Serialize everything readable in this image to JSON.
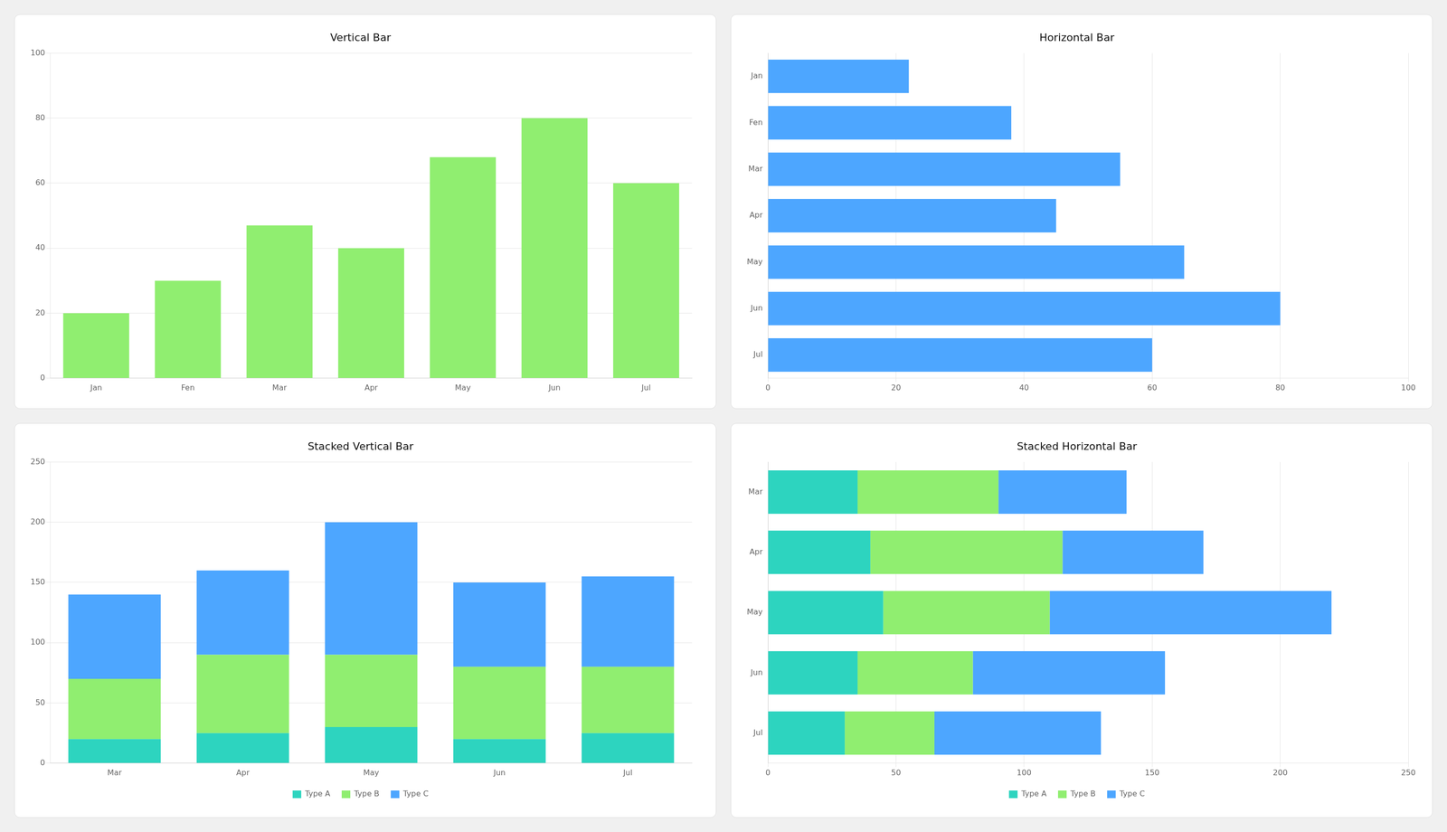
{
  "chart_data": [
    {
      "type": "bar",
      "title": "Vertical Bar",
      "categories": [
        "Jan",
        "Fen",
        "Mar",
        "Apr",
        "May",
        "Jun",
        "Jul"
      ],
      "values": [
        20,
        30,
        47,
        40,
        68,
        80,
        60
      ],
      "color": "#90ee70",
      "ylim": [
        0,
        100
      ],
      "yticks": [
        0,
        20,
        40,
        60,
        80,
        100
      ],
      "grid": true
    },
    {
      "type": "bar",
      "orientation": "horizontal",
      "title": "Horizontal Bar",
      "categories": [
        "Jan",
        "Fen",
        "Mar",
        "Apr",
        "May",
        "Jun",
        "Jul"
      ],
      "values": [
        22,
        38,
        55,
        45,
        65,
        80,
        60
      ],
      "color": "#4da6ff",
      "xlim": [
        0,
        100
      ],
      "xticks": [
        0,
        20,
        40,
        60,
        80,
        100
      ],
      "grid": true
    },
    {
      "type": "bar",
      "stacked": true,
      "title": "Stacked Vertical Bar",
      "categories": [
        "Mar",
        "Apr",
        "May",
        "Jun",
        "Jul"
      ],
      "series": [
        {
          "name": "Type A",
          "color": "#2dd4bf",
          "values": [
            20,
            25,
            30,
            20,
            25
          ]
        },
        {
          "name": "Type B",
          "color": "#90ee70",
          "values": [
            50,
            65,
            60,
            60,
            55
          ]
        },
        {
          "name": "Type C",
          "color": "#4da6ff",
          "values": [
            70,
            70,
            110,
            70,
            75
          ]
        }
      ],
      "ylim": [
        0,
        250
      ],
      "yticks": [
        0,
        50,
        100,
        150,
        200,
        250
      ],
      "grid": true,
      "legend": "bottom"
    },
    {
      "type": "bar",
      "orientation": "horizontal",
      "stacked": true,
      "title": "Stacked Horizontal Bar",
      "categories": [
        "Mar",
        "Apr",
        "May",
        "Jun",
        "Jul"
      ],
      "series": [
        {
          "name": "Type A",
          "color": "#2dd4bf",
          "values": [
            35,
            40,
            45,
            35,
            30
          ]
        },
        {
          "name": "Type B",
          "color": "#90ee70",
          "values": [
            55,
            75,
            65,
            45,
            35
          ]
        },
        {
          "name": "Type C",
          "color": "#4da6ff",
          "values": [
            50,
            55,
            110,
            75,
            65
          ]
        }
      ],
      "xlim": [
        0,
        250
      ],
      "xticks": [
        0,
        50,
        100,
        150,
        200,
        250
      ],
      "grid": true,
      "legend": "bottom"
    }
  ]
}
